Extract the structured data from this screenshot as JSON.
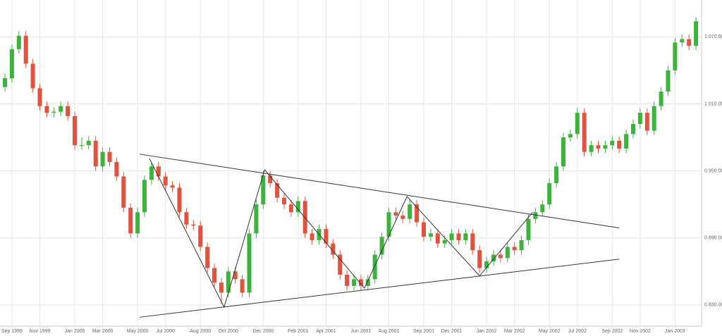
{
  "chart_data": {
    "type": "candlestick",
    "categories": [
      null,
      "Sep 1999",
      null,
      null,
      null,
      "Nov 1999",
      null,
      null,
      null,
      null,
      "Jan 2000",
      null,
      null,
      null,
      "Mar 2000",
      null,
      null,
      null,
      null,
      "May 2000",
      null,
      null,
      null,
      "Jul 2000",
      null,
      null,
      null,
      null,
      "Aug 2000",
      null,
      null,
      null,
      "Oct 2000",
      null,
      null,
      null,
      null,
      "Dec 2000",
      null,
      null,
      null,
      null,
      "Feb 2001",
      null,
      null,
      null,
      "Apr 2001",
      null,
      null,
      null,
      null,
      "Jun 2001",
      null,
      null,
      null,
      "Aug 2001",
      null,
      null,
      null,
      null,
      "Sep 2001",
      null,
      null,
      null,
      "Dec 2001",
      null,
      null,
      null,
      null,
      "Jan 2002",
      null,
      null,
      null,
      "Mar 2002",
      null,
      null,
      null,
      null,
      "May 2002",
      null,
      null,
      null,
      "Jul 2002",
      null,
      null,
      null,
      null,
      "Sep 2002",
      null,
      null,
      null,
      "Nov 2002",
      null,
      null,
      null,
      null,
      "Jan 2003",
      null,
      null,
      null
    ],
    "open": [
      1.025,
      1.033,
      1.059,
      1.071,
      1.046,
      1.024,
      1.008,
      1.002,
      1.003,
      1.008,
      0.999,
      0.973,
      0.973,
      0.977,
      0.954,
      0.967,
      0.958,
      0.945,
      0.917,
      0.894,
      0.913,
      0.942,
      0.954,
      0.945,
      0.937,
      0.935,
      0.913,
      0.902,
      0.901,
      0.882,
      0.863,
      0.85,
      0.841,
      0.86,
      0.853,
      0.841,
      0.894,
      0.92,
      0.946,
      0.939,
      0.926,
      0.92,
      0.913,
      0.923,
      0.894,
      0.888,
      0.898,
      0.885,
      0.875,
      0.857,
      0.847,
      0.853,
      0.847,
      0.853,
      0.875,
      0.891,
      0.913,
      0.91,
      0.907,
      0.92,
      0.904,
      0.891,
      0.894,
      0.885,
      0.888,
      0.894,
      0.888,
      0.894,
      0.879,
      0.863,
      0.869,
      0.875,
      0.872,
      0.882,
      0.879,
      0.888,
      0.907,
      0.913,
      0.92,
      0.939,
      0.954,
      0.98,
      0.983,
      1.002,
      0.967,
      0.973,
      0.97,
      0.973,
      0.977,
      0.97,
      0.983,
      0.992,
      1.002,
      0.986,
      1.008,
      1.021,
      1.04,
      1.065,
      1.068,
      1.062
    ],
    "high": [
      1.037,
      1.063,
      1.075,
      1.075,
      1.05,
      1.028,
      1.012,
      1.007,
      1.012,
      1.012,
      1.003,
      0.98,
      0.981,
      0.981,
      0.971,
      0.971,
      0.962,
      0.949,
      0.921,
      0.917,
      0.946,
      0.958,
      0.958,
      0.949,
      0.941,
      0.939,
      0.917,
      0.906,
      0.905,
      0.886,
      0.867,
      0.854,
      0.864,
      0.864,
      0.857,
      0.898,
      0.924,
      0.95,
      0.95,
      0.943,
      0.93,
      0.924,
      0.927,
      0.927,
      0.898,
      0.902,
      0.902,
      0.889,
      0.879,
      0.861,
      0.857,
      0.857,
      0.857,
      0.879,
      0.895,
      0.917,
      0.917,
      0.914,
      0.924,
      0.924,
      0.908,
      0.898,
      0.898,
      0.892,
      0.898,
      0.898,
      0.898,
      0.898,
      0.883,
      0.873,
      0.879,
      0.879,
      0.886,
      0.886,
      0.892,
      0.911,
      0.917,
      0.924,
      0.943,
      0.958,
      0.984,
      0.987,
      1.006,
      1.006,
      0.977,
      0.977,
      0.977,
      0.981,
      0.981,
      0.987,
      0.996,
      1.006,
      1.006,
      1.012,
      1.025,
      1.044,
      1.069,
      1.072,
      1.072,
      1.088
    ],
    "low": [
      1.021,
      1.029,
      1.055,
      1.042,
      1.02,
      1.004,
      0.998,
      0.998,
      0.999,
      0.995,
      0.969,
      0.969,
      0.969,
      0.95,
      0.95,
      0.954,
      0.941,
      0.913,
      0.89,
      0.89,
      0.909,
      0.938,
      0.941,
      0.933,
      0.931,
      0.909,
      0.898,
      0.897,
      0.878,
      0.859,
      0.846,
      0.831,
      0.837,
      0.849,
      0.837,
      0.837,
      0.89,
      0.916,
      0.935,
      0.922,
      0.916,
      0.909,
      0.909,
      0.89,
      0.884,
      0.884,
      0.881,
      0.871,
      0.853,
      0.843,
      0.843,
      0.843,
      0.843,
      0.849,
      0.871,
      0.887,
      0.906,
      0.903,
      0.903,
      0.9,
      0.887,
      0.887,
      0.881,
      0.881,
      0.884,
      0.884,
      0.884,
      0.875,
      0.859,
      0.859,
      0.865,
      0.868,
      0.868,
      0.875,
      0.875,
      0.884,
      0.903,
      0.909,
      0.916,
      0.935,
      0.95,
      0.976,
      0.979,
      0.963,
      0.963,
      0.966,
      0.966,
      0.969,
      0.966,
      0.966,
      0.979,
      0.988,
      0.982,
      0.982,
      1.004,
      1.017,
      1.036,
      1.061,
      1.058,
      1.058
    ],
    "close": [
      1.033,
      1.059,
      1.071,
      1.046,
      1.024,
      1.008,
      1.002,
      1.003,
      1.008,
      0.999,
      0.973,
      0.973,
      0.977,
      0.954,
      0.967,
      0.958,
      0.945,
      0.917,
      0.894,
      0.913,
      0.942,
      0.954,
      0.945,
      0.937,
      0.935,
      0.913,
      0.902,
      0.901,
      0.882,
      0.863,
      0.85,
      0.841,
      0.86,
      0.853,
      0.841,
      0.894,
      0.92,
      0.946,
      0.939,
      0.926,
      0.92,
      0.913,
      0.923,
      0.894,
      0.888,
      0.898,
      0.885,
      0.875,
      0.857,
      0.847,
      0.853,
      0.847,
      0.853,
      0.875,
      0.891,
      0.913,
      0.91,
      0.907,
      0.92,
      0.904,
      0.891,
      0.894,
      0.885,
      0.888,
      0.894,
      0.888,
      0.894,
      0.879,
      0.863,
      0.869,
      0.875,
      0.872,
      0.882,
      0.879,
      0.888,
      0.907,
      0.913,
      0.92,
      0.939,
      0.954,
      0.98,
      0.983,
      1.002,
      0.967,
      0.973,
      0.97,
      0.973,
      0.977,
      0.97,
      0.983,
      0.992,
      1.002,
      0.986,
      1.008,
      1.021,
      1.04,
      1.065,
      1.068,
      1.062,
      1.084
    ],
    "up_color": "#3cb43c",
    "down_color": "#e0533f",
    "ylim": [
      0.811,
      1.103
    ],
    "yticks": [
      {
        "value": 0.83,
        "label": "0.830.00"
      },
      {
        "value": 0.89,
        "label": "0.890.00"
      },
      {
        "value": 0.95,
        "label": "0.950.00"
      },
      {
        "value": 1.01,
        "label": "1.010.00"
      },
      {
        "value": 1.07,
        "label": "1.070.00"
      }
    ],
    "grid": true,
    "trend_lines": [
      {
        "color": "#333333",
        "x": [
          19.3,
          88
        ],
        "y": [
          0.965,
          0.899
        ]
      },
      {
        "color": "#333333",
        "x": [
          19.3,
          88
        ],
        "y": [
          0.819,
          0.871
        ]
      },
      {
        "color": "#333333",
        "x": [
          20.7,
          31.4,
          37.2,
          51.5,
          57.6,
          68,
          75.6
        ],
        "y": [
          0.961,
          0.828,
          0.951,
          0.845,
          0.927,
          0.856,
          0.913
        ]
      }
    ]
  }
}
